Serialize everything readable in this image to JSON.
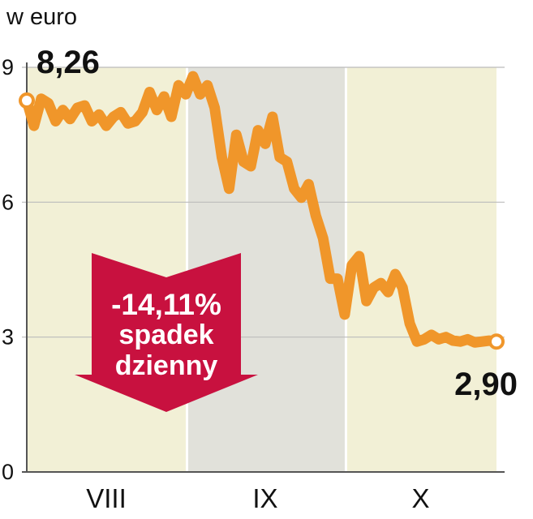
{
  "chart_data": {
    "type": "line",
    "unit_label": "w euro",
    "ylim": [
      0,
      9
    ],
    "yticks": [
      "0",
      "3",
      "6",
      "9"
    ],
    "grid": true,
    "periods": [
      {
        "label": "VIII",
        "start": 0,
        "end": 22,
        "color": "#f2f0d6"
      },
      {
        "label": "IX",
        "start": 22,
        "end": 44,
        "color": "#e1e1da"
      },
      {
        "label": "X",
        "start": 44,
        "end": 65,
        "color": "#f2f0d6"
      }
    ],
    "series": [
      {
        "color": "#f0962a",
        "x": [
          0,
          1,
          2,
          3,
          4,
          5,
          6,
          7,
          8,
          9,
          10,
          11,
          12,
          13,
          14,
          15,
          16,
          17,
          18,
          19,
          20,
          21,
          22,
          23,
          24,
          25,
          26,
          27,
          28,
          29,
          30,
          31,
          32,
          33,
          34,
          35,
          36,
          37,
          38,
          39,
          40,
          41,
          42,
          43,
          44,
          45,
          46,
          47,
          48,
          49,
          50,
          51,
          52,
          53,
          54,
          55,
          56,
          57,
          58,
          59,
          60,
          61,
          62,
          63,
          64,
          65
        ],
        "values": [
          8.26,
          7.7,
          8.3,
          8.2,
          7.8,
          8.05,
          7.85,
          8.1,
          8.15,
          7.8,
          7.95,
          7.7,
          7.9,
          8.0,
          7.75,
          7.8,
          8.0,
          8.45,
          8.05,
          8.35,
          7.9,
          8.6,
          8.4,
          8.8,
          8.4,
          8.6,
          8.1,
          7.0,
          6.3,
          7.5,
          6.9,
          6.8,
          7.6,
          7.3,
          7.9,
          7.0,
          6.9,
          6.3,
          6.1,
          6.4,
          5.7,
          5.2,
          4.3,
          4.3,
          3.5,
          4.6,
          4.8,
          3.8,
          4.1,
          4.2,
          4.0,
          4.4,
          4.1,
          3.3,
          2.9,
          2.95,
          3.05,
          2.95,
          3.0,
          2.92,
          2.9,
          2.95,
          2.88,
          2.9,
          2.92,
          2.9
        ]
      }
    ],
    "annotations": {
      "start_value": "8,26",
      "end_value": "2,90",
      "callout_percent": "-14,11%",
      "callout_line1": "spadek",
      "callout_line2": "dzienny",
      "callout_color": "#c8113f"
    }
  }
}
